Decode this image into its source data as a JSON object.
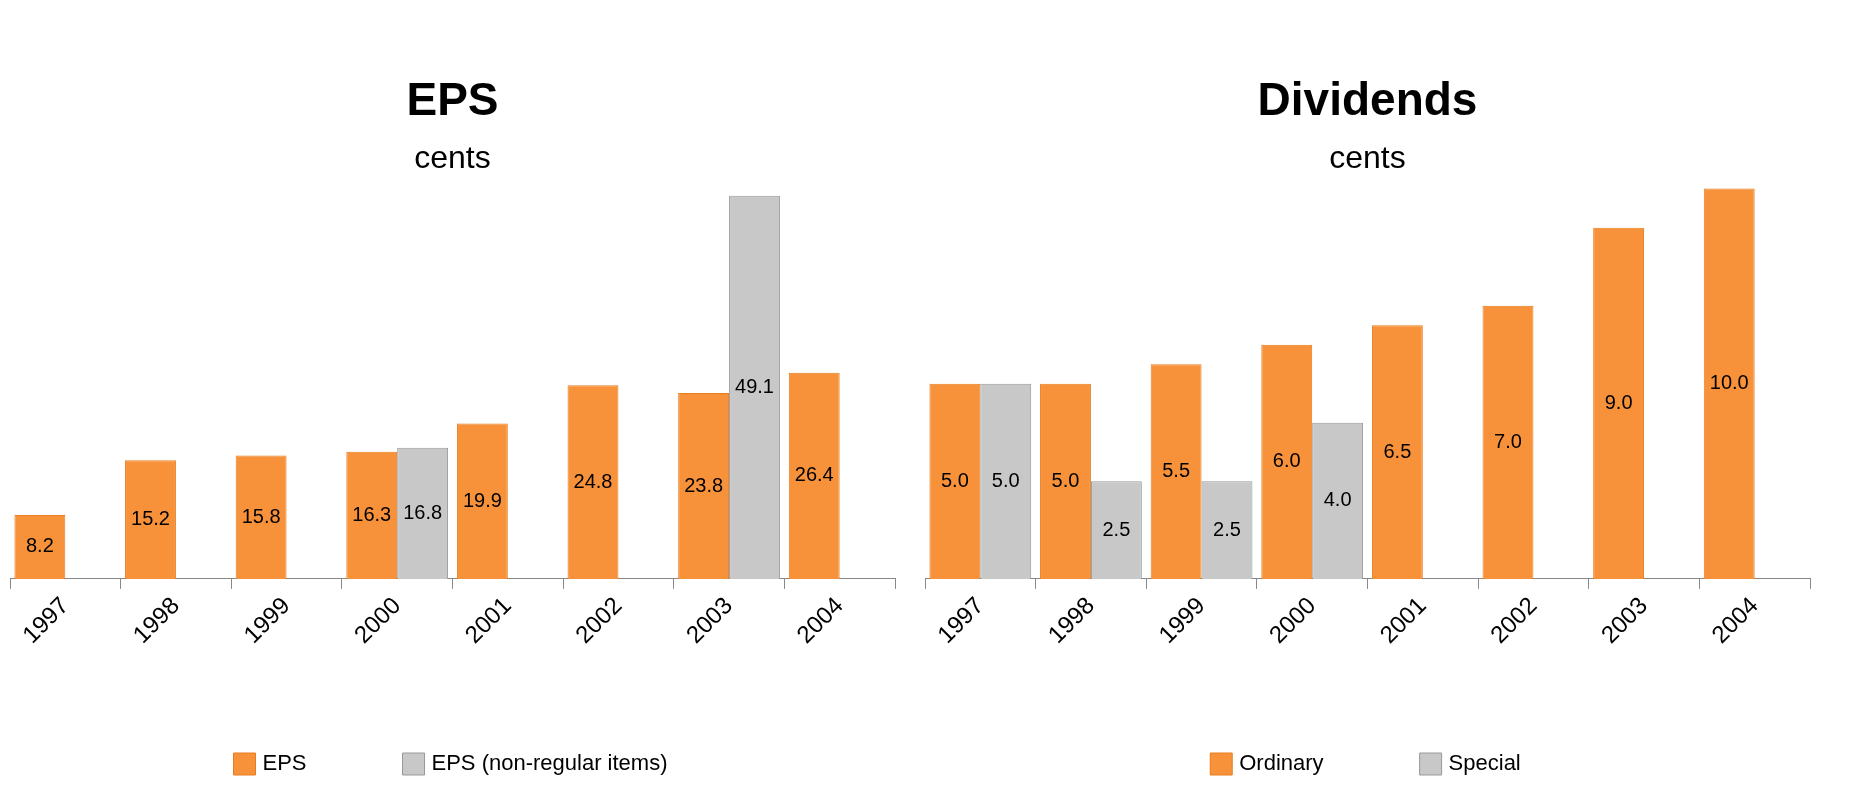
{
  "chart_data": [
    {
      "type": "bar",
      "title": "EPS",
      "subtitle": "cents",
      "categories": [
        "1997",
        "1998",
        "1999",
        "2000",
        "2001",
        "2002",
        "2003",
        "2004"
      ],
      "series": [
        {
          "name": "EPS",
          "color": "#f7923a",
          "values": [
            8.2,
            15.2,
            15.8,
            16.3,
            19.9,
            24.8,
            23.8,
            26.4
          ]
        },
        {
          "name": "EPS (non-regular items)",
          "color": "#c8c8c8",
          "values": [
            null,
            null,
            null,
            16.8,
            null,
            null,
            49.1,
            null
          ]
        }
      ],
      "data_labels": true,
      "legend": "bottom",
      "tick_labels": "x"
    },
    {
      "type": "bar",
      "title": "Dividends",
      "subtitle": "cents",
      "categories": [
        "1997",
        "1998",
        "1999",
        "2000",
        "2001",
        "2002",
        "2003",
        "2004"
      ],
      "series": [
        {
          "name": "Ordinary",
          "color": "#f7923a",
          "values": [
            5.0,
            5.0,
            5.5,
            6.0,
            6.5,
            7.0,
            9.0,
            10.0
          ],
          "value_labels": [
            "5.0",
            "5.0",
            "5.5",
            "6.0",
            "6.5",
            "7.0",
            "9.0",
            "10.0"
          ]
        },
        {
          "name": "Special",
          "color": "#c8c8c8",
          "values": [
            5.0,
            2.5,
            2.5,
            4.0,
            null,
            null,
            null,
            null
          ],
          "value_labels": [
            "5.0",
            "2.5",
            "2.5",
            "4.0",
            null,
            null,
            null,
            null
          ]
        }
      ],
      "legend": "bottom",
      "tick_labels": "x"
    }
  ]
}
